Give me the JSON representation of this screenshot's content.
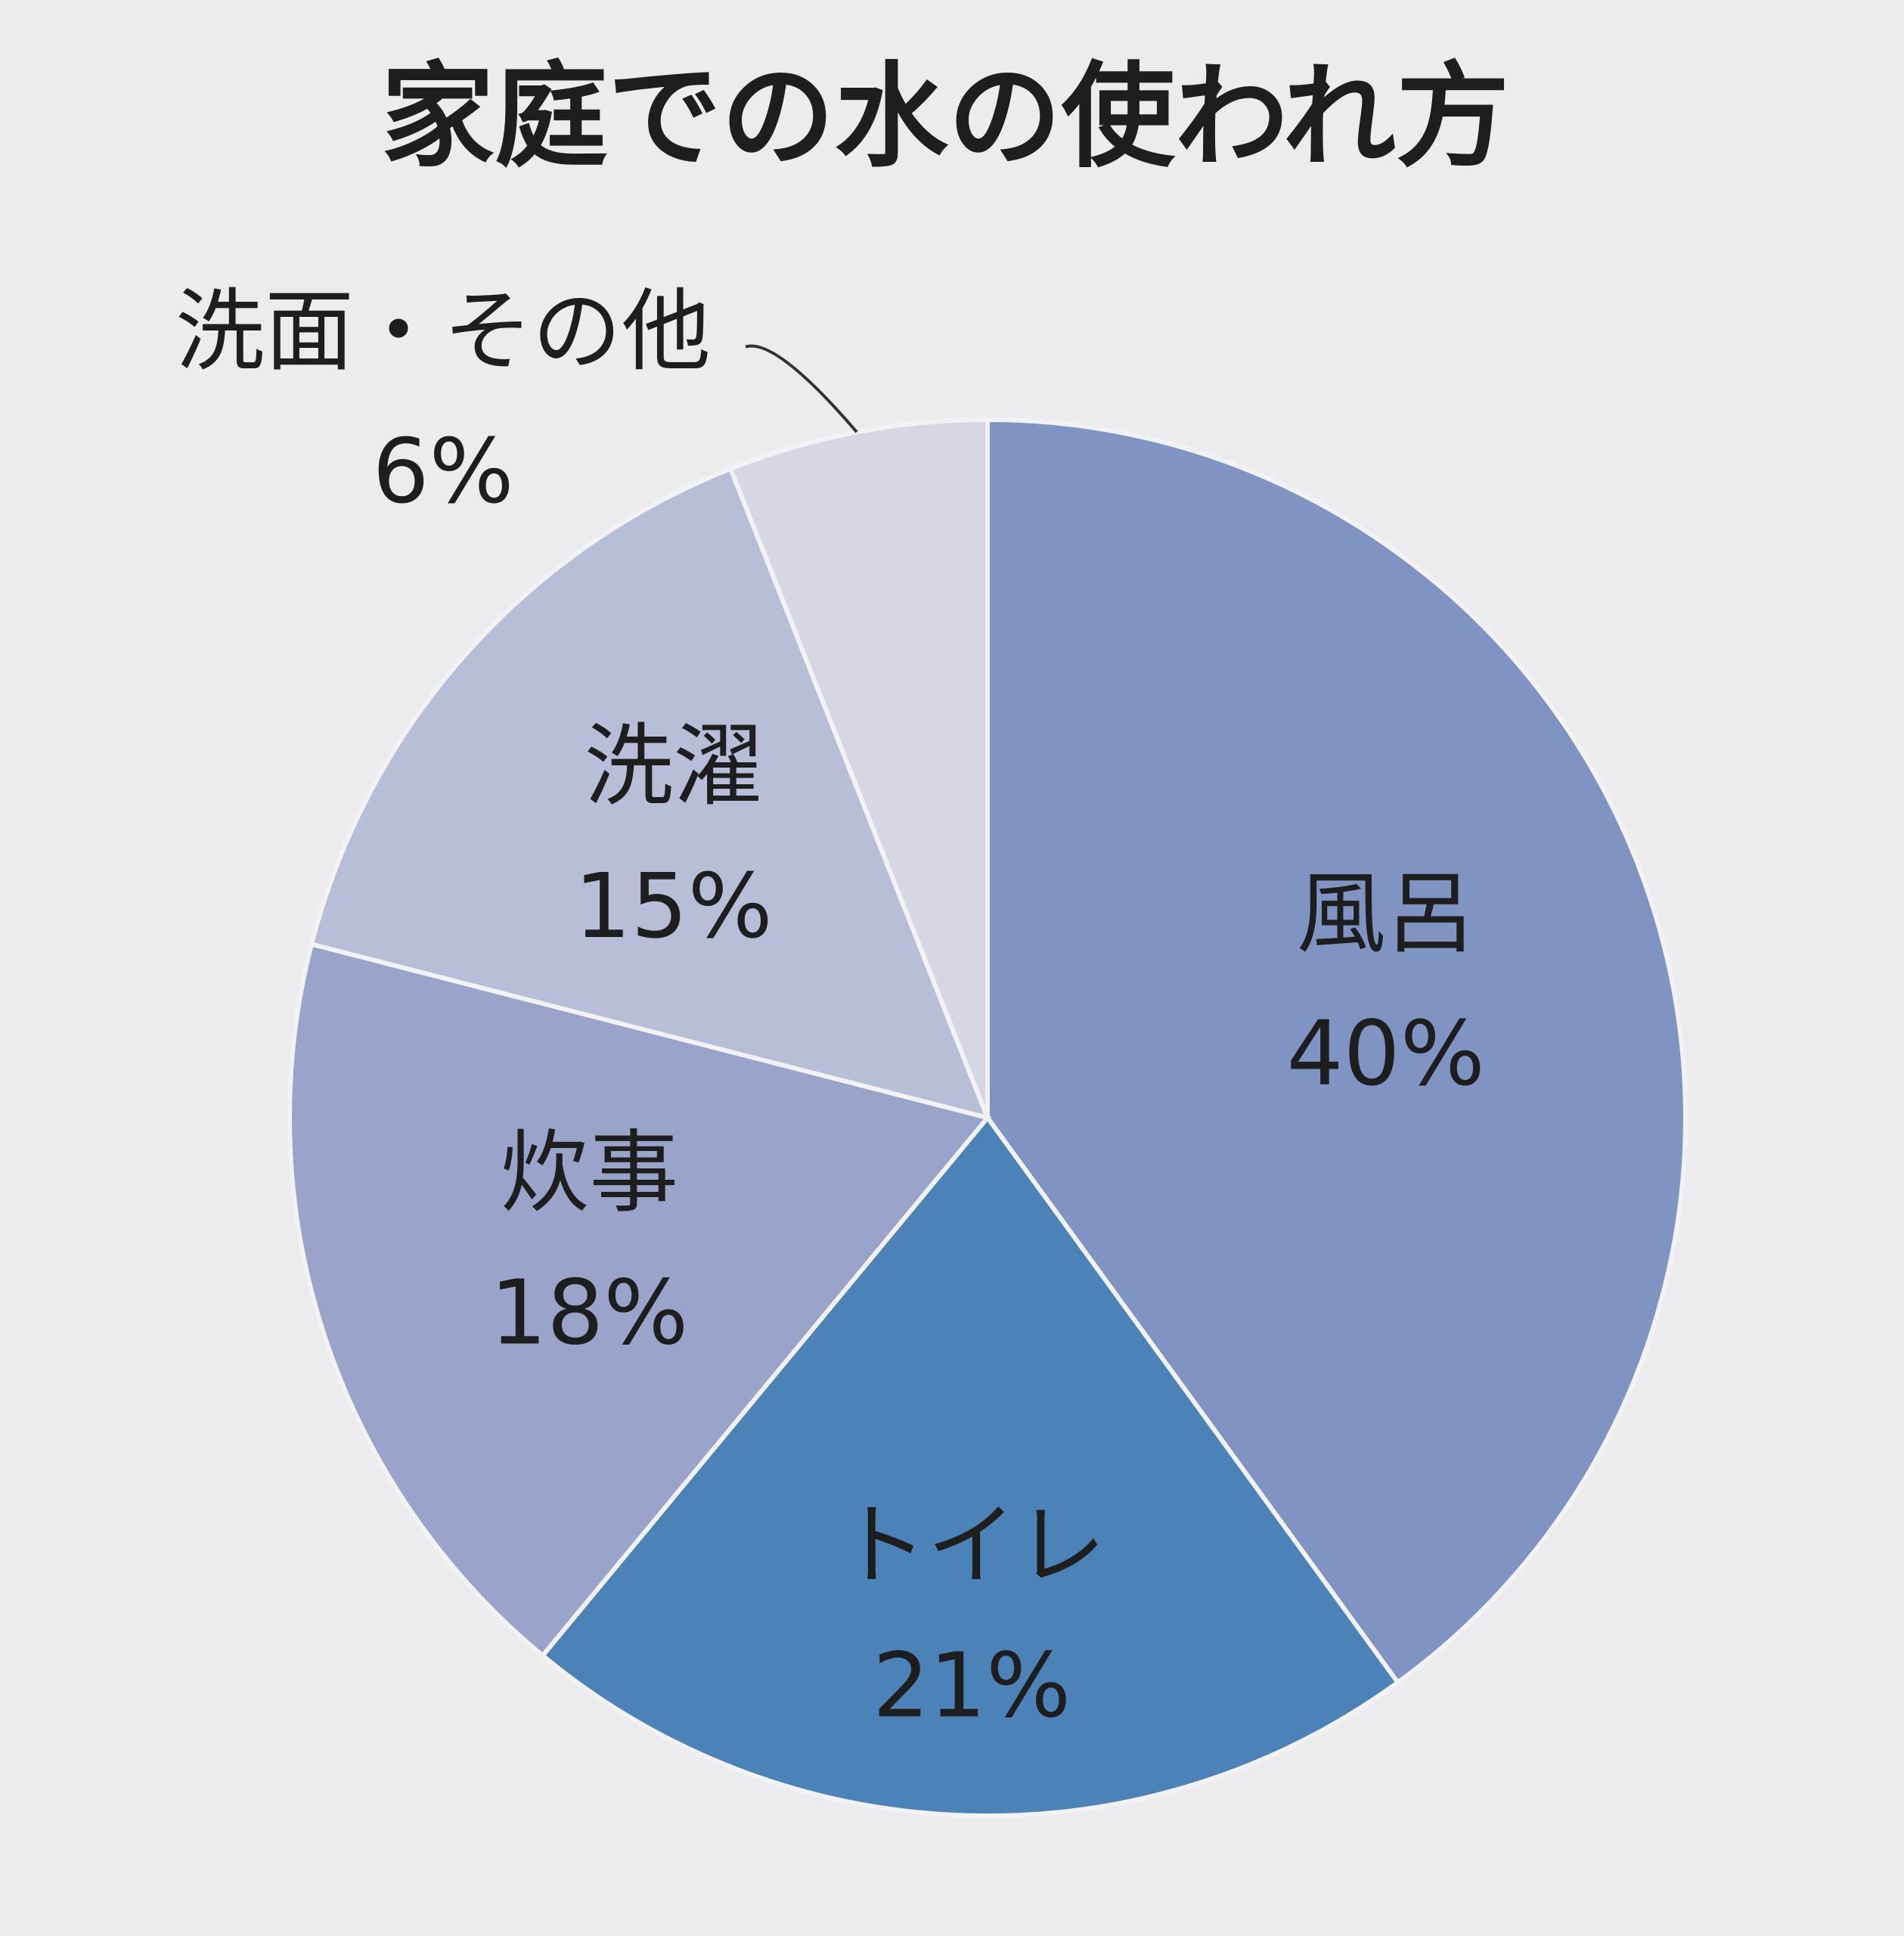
{
  "chart_data": {
    "type": "pie",
    "title": "家庭での水の使われ方",
    "categories": [
      "風呂",
      "トイレ",
      "炊事",
      "洗濯",
      "洗面・その他"
    ],
    "values": [
      40,
      21,
      18,
      15,
      6
    ],
    "value_labels": [
      "40%",
      "21%",
      "18%",
      "15%",
      "6%"
    ],
    "colors": [
      "#7f94c3",
      "#4b82b8",
      "#9aa3c9",
      "#b8bdd8",
      "#d6d7e3"
    ]
  }
}
